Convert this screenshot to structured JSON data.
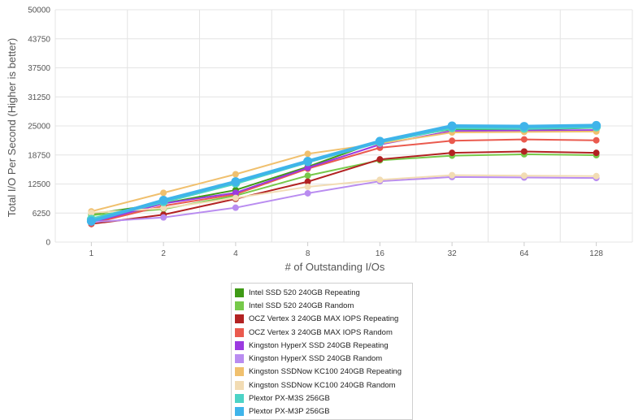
{
  "chart_data": {
    "type": "line",
    "title": "",
    "xlabel": "# of Outstanding I/Os",
    "ylabel": "Total I/O Per Second (Higher is better)",
    "categories": [
      "1",
      "2",
      "4",
      "8",
      "16",
      "32",
      "64",
      "128"
    ],
    "ylim": [
      0,
      50000
    ],
    "yticks": [
      "0",
      "6250",
      "12500",
      "18750",
      "25000",
      "31250",
      "37500",
      "43750",
      "50000"
    ],
    "grid": true,
    "legend_position": "bottom",
    "series": [
      {
        "name": "Intel SSD 520 240GB Repeating",
        "color": "#3f9a16",
        "values": [
          6000,
          8300,
          11200,
          16200,
          21800,
          24300,
          24200,
          24600
        ]
      },
      {
        "name": "Intel SSD 520 240GB Random",
        "color": "#77c94a",
        "values": [
          5800,
          7100,
          10000,
          14300,
          17600,
          18600,
          18900,
          18700
        ]
      },
      {
        "name": "OCZ Vertex 3 240GB MAX IOPS Repeating",
        "color": "#b22222",
        "values": [
          3900,
          5900,
          9300,
          13000,
          17800,
          19200,
          19500,
          19200
        ]
      },
      {
        "name": "OCZ Vertex 3 240GB MAX IOPS Random",
        "color": "#ea5a4e",
        "values": [
          4000,
          7800,
          10300,
          15800,
          20300,
          21800,
          22100,
          21900
        ]
      },
      {
        "name": "Kingston HyperX SSD 240GB Repeating",
        "color": "#9b3ae0",
        "values": [
          4200,
          8300,
          10600,
          16000,
          21000,
          23900,
          24000,
          24100
        ]
      },
      {
        "name": "Kingston HyperX SSD 240GB Random",
        "color": "#b98cf0",
        "values": [
          4300,
          5300,
          7400,
          10500,
          13100,
          14000,
          13900,
          13800
        ]
      },
      {
        "name": "Kingston SSDNow KC100 240GB Repeating",
        "color": "#f0c06e",
        "values": [
          6600,
          10600,
          14600,
          19000,
          21200,
          23600,
          23700,
          23800
        ]
      },
      {
        "name": "Kingston SSDNow KC100 240GB Random",
        "color": "#f2dcb4",
        "values": [
          6300,
          7300,
          9500,
          11900,
          13400,
          14400,
          14300,
          14200
        ]
      },
      {
        "name": "Plextor PX-M3S 256GB",
        "color": "#4cd3c6",
        "values": [
          4900,
          8700,
          12700,
          17300,
          21600,
          24600,
          24500,
          24800
        ]
      },
      {
        "name": "Plextor PX-M3P 256GB",
        "color": "#3fb4ea",
        "values": [
          4500,
          9000,
          13000,
          17400,
          21700,
          25000,
          24900,
          25100
        ]
      }
    ]
  }
}
